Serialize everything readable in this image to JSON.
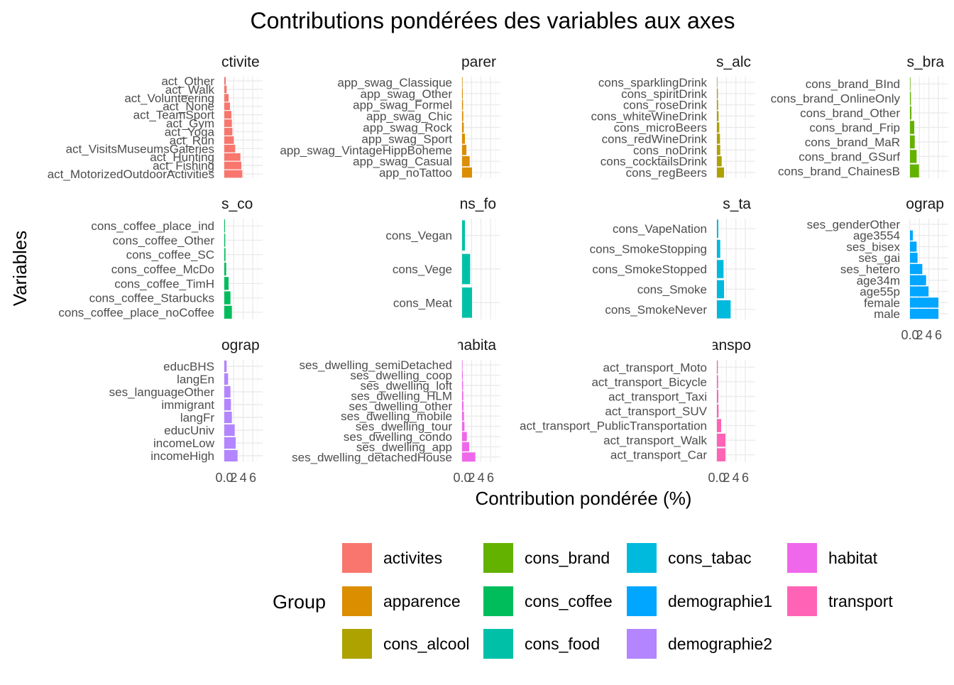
{
  "chart_data": {
    "type": "bar",
    "orientation": "horizontal",
    "title": "Contributions pondérées des variables aux axes",
    "xlabel": "Contribution pondérée (%)",
    "ylabel": "Variables",
    "xlim": [
      0,
      7.5
    ],
    "x_ticks": [
      "0",
      "2",
      "4",
      "6"
    ],
    "x_tick_labels_rendered": [
      "0.0",
      "2",
      "4",
      "6"
    ],
    "legend_title": "Group",
    "legend_placement": "bottom",
    "grid": true,
    "panel_strip_texts": [
      "ctivite",
      "parer",
      "s_alc",
      "s_bra",
      "s_co",
      "ns_fo",
      "s_ta",
      "ograp",
      "ograp",
      "habita",
      "anspo"
    ],
    "groups": [
      {
        "name": "activites",
        "color": "#F8766D"
      },
      {
        "name": "apparence",
        "color": "#DB8E00"
      },
      {
        "name": "cons_alcool",
        "color": "#AEA200"
      },
      {
        "name": "cons_brand",
        "color": "#64B200"
      },
      {
        "name": "cons_coffee",
        "color": "#00BD5C"
      },
      {
        "name": "cons_food",
        "color": "#00C1A7"
      },
      {
        "name": "cons_tabac",
        "color": "#00BADE"
      },
      {
        "name": "demographie1",
        "color": "#00A6FF"
      },
      {
        "name": "demographie2",
        "color": "#B385FF"
      },
      {
        "name": "habitat",
        "color": "#EF67EB"
      },
      {
        "name": "transport",
        "color": "#FF63B6"
      }
    ],
    "panels": [
      {
        "group": "activites",
        "categories": [
          "act_Other",
          "act_Walk",
          "act_Volunteering",
          "act_None",
          "act_TeamSport",
          "act_Gym",
          "act_Yoga",
          "act_Run",
          "act_VisitsMuseumsGaleries",
          "act_Hunting",
          "act_Fishing",
          "act_MotorizedOutdoorActivities"
        ],
        "values": [
          0.3,
          0.5,
          0.9,
          1.2,
          1.5,
          1.6,
          1.7,
          2.0,
          2.3,
          3.4,
          3.6,
          3.8
        ]
      },
      {
        "group": "apparence",
        "categories": [
          "app_swag_Classique",
          "app_swag_Other",
          "app_swag_Formel",
          "app_swag_Chic",
          "app_swag_Rock",
          "app_swag_Sport",
          "app_swag_VintageHippBoheme",
          "app_swag_Casual",
          "app_noTattoo"
        ],
        "values": [
          0.1,
          0.15,
          0.2,
          0.25,
          0.35,
          0.6,
          0.9,
          1.6,
          2.1
        ]
      },
      {
        "group": "cons_alcool",
        "categories": [
          "cons_sparklingDrink",
          "cons_spiritDrink",
          "cons_roseDrink",
          "cons_whiteWineDrink",
          "cons_microBeers",
          "cons_redWineDrink",
          "cons_noDrink",
          "cons_cocktailsDrink",
          "cons_regBeers"
        ],
        "values": [
          0.1,
          0.2,
          0.25,
          0.35,
          0.5,
          0.65,
          0.7,
          1.0,
          1.5
        ]
      },
      {
        "group": "cons_brand",
        "categories": [
          "cons_brand_BInd",
          "cons_brand_OnlineOnly",
          "cons_brand_Other",
          "cons_brand_Frip",
          "cons_brand_MaR",
          "cons_brand_GSurf",
          "cons_brand_ChainesB"
        ],
        "values": [
          0.1,
          0.2,
          0.3,
          0.9,
          1.0,
          1.4,
          1.9
        ]
      },
      {
        "group": "cons_coffee",
        "categories": [
          "cons_coffee_place_ind",
          "cons_coffee_Other",
          "cons_coffee_SC",
          "cons_coffee_McDo",
          "cons_coffee_TimH",
          "cons_coffee_Starbucks",
          "cons_coffee_place_noCoffee"
        ],
        "values": [
          0.15,
          0.2,
          0.25,
          0.4,
          0.9,
          1.3,
          1.6
        ]
      },
      {
        "group": "cons_food",
        "categories": [
          "cons_Vegan",
          "cons_Vege",
          "cons_Meat"
        ],
        "values": [
          0.6,
          1.7,
          2.1
        ]
      },
      {
        "group": "cons_tabac",
        "categories": [
          "cons_VapeNation",
          "cons_SmokeStopping",
          "cons_SmokeStopped",
          "cons_Smoke",
          "cons_SmokeNever"
        ],
        "values": [
          0.3,
          0.7,
          1.4,
          1.5,
          2.9
        ]
      },
      {
        "group": "demographie1",
        "categories": [
          "ses_genderOther",
          "age3554",
          "ses_bisex",
          "ses_gai",
          "ses_hetero",
          "age34m",
          "age55p",
          "female",
          "male"
        ],
        "values": [
          0.0,
          0.6,
          1.4,
          1.6,
          2.6,
          3.4,
          3.9,
          6.0,
          6.0
        ]
      },
      {
        "group": "demographie2",
        "categories": [
          "educBHS",
          "langEn",
          "ses_languageOther",
          "immigrant",
          "langFr",
          "educUniv",
          "incomeLow",
          "incomeHigh"
        ],
        "values": [
          0.5,
          0.8,
          1.3,
          1.4,
          1.6,
          2.2,
          2.4,
          2.8
        ]
      },
      {
        "group": "habitat",
        "categories": [
          "ses_dwelling_semiDetached",
          "ses_dwelling_coop",
          "ses_dwelling_loft",
          "ses_dwelling_HLM",
          "ses_dwelling_other",
          "ses_dwelling_mobile",
          "ses_dwelling_tour",
          "ses_dwelling_condo",
          "ses_dwelling_app",
          "ses_dwelling_detachedHouse"
        ],
        "values": [
          0.1,
          0.15,
          0.2,
          0.25,
          0.3,
          0.4,
          0.5,
          1.0,
          1.5,
          2.8
        ]
      },
      {
        "group": "transport",
        "categories": [
          "act_transport_Moto",
          "act_transport_Bicycle",
          "act_transport_Taxi",
          "act_transport_SUV",
          "act_transport_PublicTransportation",
          "act_transport_Walk",
          "act_transport_Car"
        ],
        "values": [
          0.2,
          0.25,
          0.3,
          0.35,
          0.9,
          1.8,
          1.8
        ]
      }
    ]
  }
}
